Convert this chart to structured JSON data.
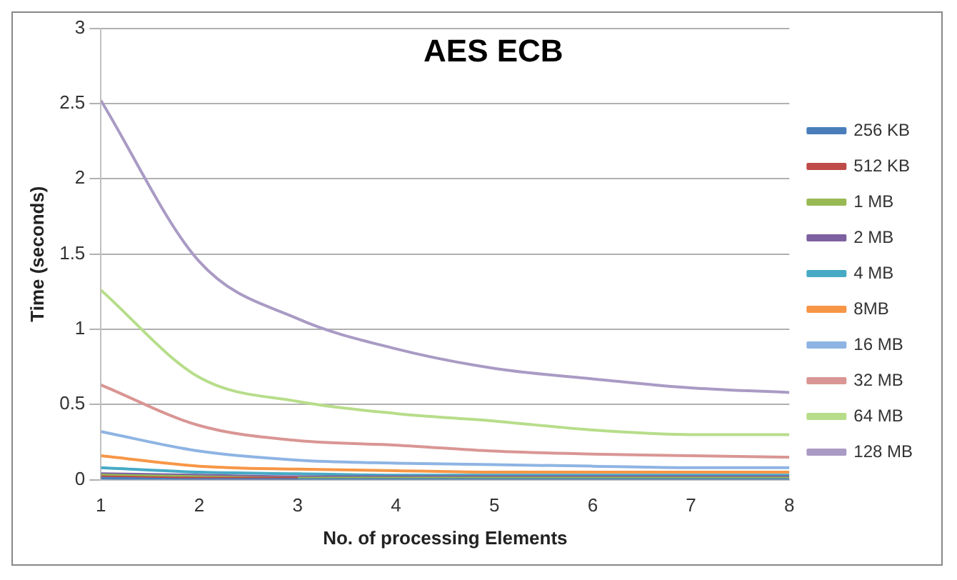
{
  "chart_data": {
    "type": "line",
    "title": "AES ECB",
    "xlabel": "No. of processing Elements",
    "ylabel": "Time (seconds)",
    "x": [
      1,
      2,
      3,
      4,
      5,
      6,
      7,
      8
    ],
    "xlim": [
      1,
      8
    ],
    "xticks": [
      1,
      2,
      3,
      4,
      5,
      6,
      7,
      8
    ],
    "ylim": [
      0,
      3
    ],
    "yticks": [
      0,
      0.5,
      1,
      1.5,
      2,
      2.5,
      3
    ],
    "grid": "y",
    "legend": "right",
    "marker": "none",
    "line_style": "solid",
    "series": [
      {
        "name": "256 KB",
        "color": "#4a7ebb",
        "values": [
          0.01,
          0,
          0,
          0,
          0,
          0,
          0,
          0
        ]
      },
      {
        "name": "512 KB",
        "color": "#be4b48",
        "values": [
          0.02,
          0.01,
          0.01,
          null,
          null,
          null,
          null,
          null
        ]
      },
      {
        "name": "1 MB",
        "color": "#98b954",
        "values": [
          0.03,
          0.02,
          0.01,
          0.01,
          0.01,
          0.01,
          0.01,
          0.01
        ]
      },
      {
        "name": "2 MB",
        "color": "#7d60a0",
        "values": [
          0.04,
          0.03,
          0.02,
          0.02,
          0.02,
          0.02,
          0.02,
          0.02
        ]
      },
      {
        "name": "4 MB",
        "color": "#46aac5",
        "values": [
          0.08,
          0.05,
          0.04,
          0.03,
          0.03,
          0.03,
          0.03,
          0.03
        ]
      },
      {
        "name": "8MB",
        "color": "#f79646",
        "values": [
          0.16,
          0.09,
          0.07,
          0.06,
          0.05,
          0.05,
          0.05,
          0.05
        ]
      },
      {
        "name": "16 MB",
        "color": "#8eb4e3",
        "values": [
          0.32,
          0.19,
          0.13,
          0.11,
          0.1,
          0.09,
          0.08,
          0.08
        ]
      },
      {
        "name": "32 MB",
        "color": "#d99694",
        "values": [
          0.63,
          0.36,
          0.26,
          0.23,
          0.19,
          0.17,
          0.16,
          0.15
        ]
      },
      {
        "name": "64 MB",
        "color": "#b7dd8a",
        "values": [
          1.26,
          0.68,
          0.52,
          0.44,
          0.39,
          0.33,
          0.3,
          0.3
        ]
      },
      {
        "name": "128 MB",
        "color": "#a99bc4",
        "values": [
          2.52,
          1.45,
          1.07,
          0.87,
          0.74,
          0.67,
          0.61,
          0.58
        ]
      }
    ]
  }
}
